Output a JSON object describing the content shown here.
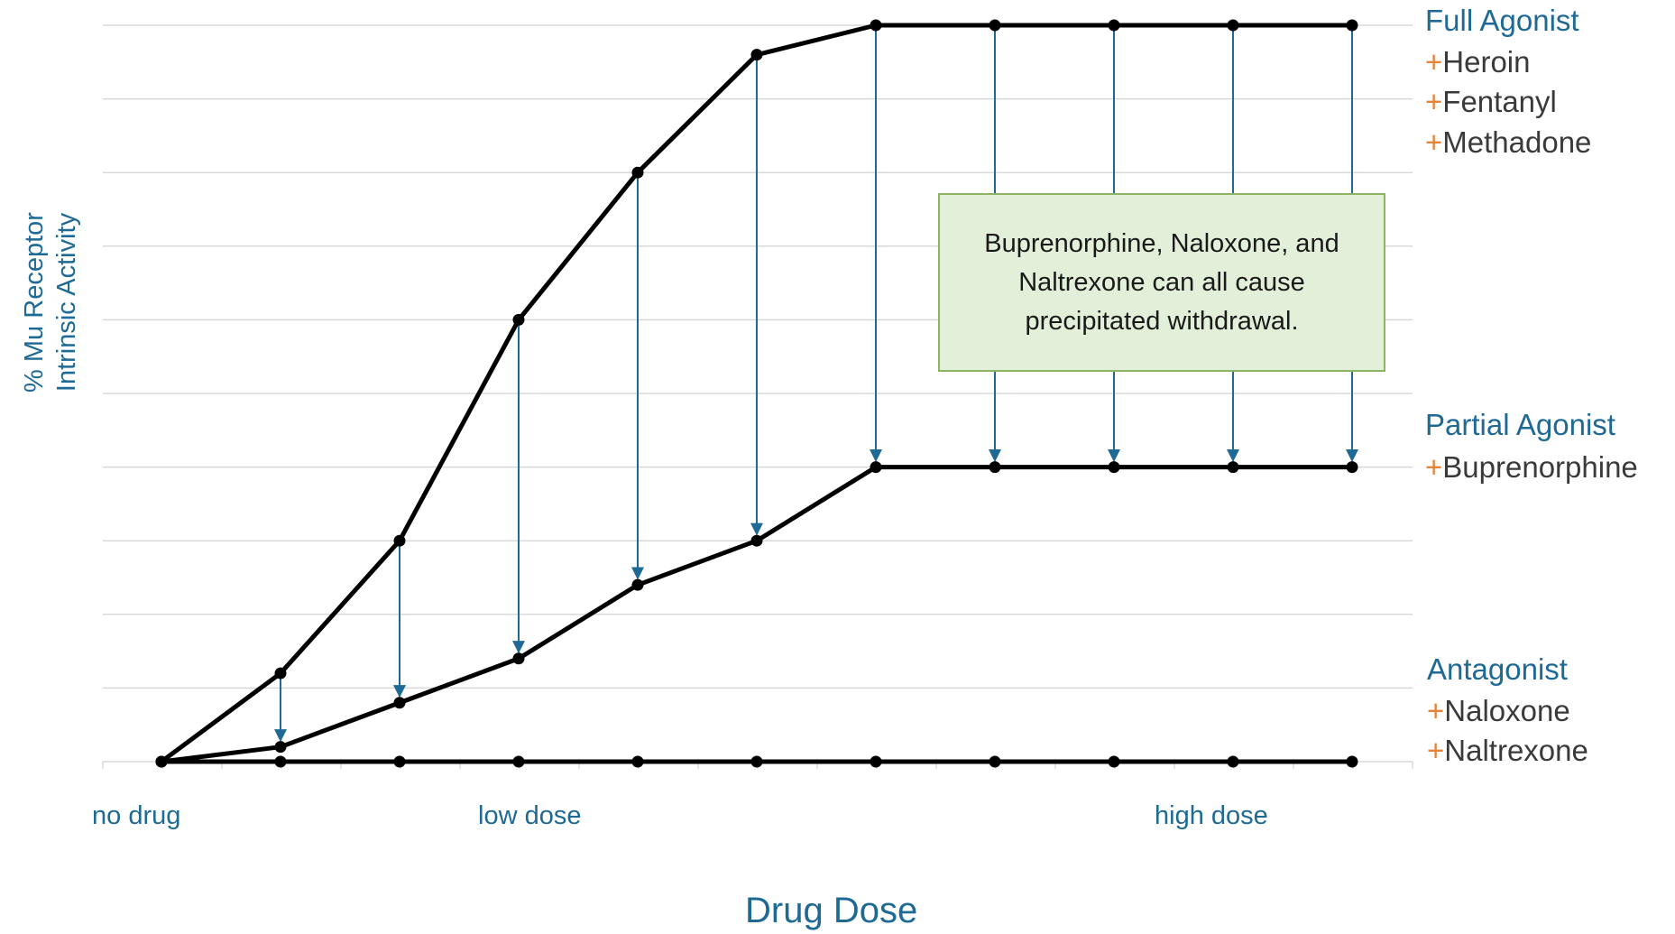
{
  "chart_data": {
    "type": "line",
    "title": "",
    "xlabel": "Drug Dose",
    "ylabel_lines": [
      "% Mu Receptor",
      "Intrinsic Activity"
    ],
    "x_tick_labels": [
      {
        "index": 0,
        "label": "no drug"
      },
      {
        "index": 3,
        "label": "low dose"
      },
      {
        "index": 9,
        "label": "high dose"
      }
    ],
    "x": [
      0,
      1,
      2,
      3,
      4,
      5,
      6,
      7,
      8,
      9,
      10
    ],
    "ylim": [
      0,
      100
    ],
    "grid": true,
    "series": [
      {
        "values": [
          0,
          12,
          30,
          60,
          80,
          96,
          100,
          100,
          100,
          100,
          100
        ]
      },
      {
        "values": [
          0,
          2,
          8,
          14,
          24,
          30,
          40,
          40,
          40,
          40,
          40
        ]
      },
      {
        "values": [
          0,
          0,
          0,
          0,
          0,
          0,
          0,
          0,
          0,
          0,
          0
        ]
      }
    ],
    "arrow_indices": [
      1,
      2,
      3,
      4,
      5,
      6,
      7,
      8,
      9,
      10
    ],
    "colors": {
      "line": "#000000",
      "arrow": "#1f6a94",
      "grid": "#d9d9d9",
      "accent": "#e8843a",
      "text": "#1f6a94"
    }
  },
  "legend": {
    "full_agonist": {
      "title": "Full Agonist",
      "drugs": [
        "Heroin",
        "Fentanyl",
        "Methadone"
      ]
    },
    "partial_agonist": {
      "title": "Partial Agonist",
      "drugs": [
        "Buprenorphine"
      ]
    },
    "antagonist": {
      "title": "Antagonist",
      "drugs": [
        "Naloxone",
        "Naltrexone"
      ]
    },
    "plus_symbol": "+"
  },
  "callout": {
    "text": "Buprenorphine, Naloxone, and Naltrexone can all cause precipitated withdrawal."
  }
}
